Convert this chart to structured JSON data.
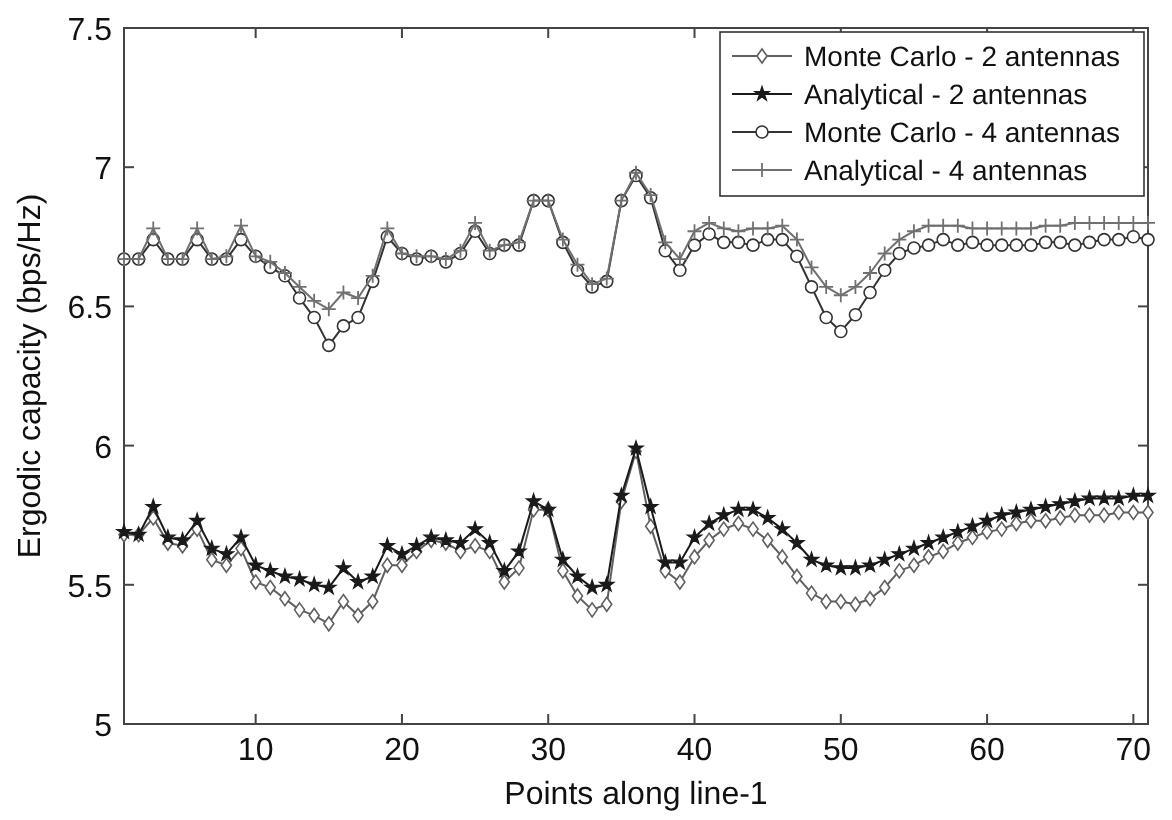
{
  "chart_data": {
    "type": "line",
    "xlabel": "Points along line-1",
    "ylabel": "Ergodic capacity (bps/Hz)",
    "x": [
      1,
      2,
      3,
      4,
      5,
      6,
      7,
      8,
      9,
      10,
      11,
      12,
      13,
      14,
      15,
      16,
      17,
      18,
      19,
      20,
      21,
      22,
      23,
      24,
      25,
      26,
      27,
      28,
      29,
      30,
      31,
      32,
      33,
      34,
      35,
      36,
      37,
      38,
      39,
      40,
      41,
      42,
      43,
      44,
      45,
      46,
      47,
      48,
      49,
      50,
      51,
      52,
      53,
      54,
      55,
      56,
      57,
      58,
      59,
      60,
      61,
      62,
      63,
      64,
      65,
      66,
      67,
      68,
      69,
      70,
      71
    ],
    "xlim": [
      1,
      71
    ],
    "xticks": [
      10,
      20,
      30,
      40,
      50,
      60,
      70
    ],
    "ylim": [
      5,
      7.5
    ],
    "yticks": [
      5,
      5.5,
      6,
      6.5,
      7,
      7.5
    ],
    "grid": false,
    "legend": "top right",
    "line_style": "solid",
    "series": [
      {
        "name": "Monte Carlo - 2 antennas",
        "color": "#606060",
        "marker": "diamond",
        "values": [
          5.68,
          5.68,
          5.74,
          5.65,
          5.64,
          5.7,
          5.59,
          5.57,
          5.63,
          5.51,
          5.49,
          5.45,
          5.41,
          5.39,
          5.36,
          5.44,
          5.39,
          5.44,
          5.57,
          5.57,
          5.62,
          5.66,
          5.65,
          5.62,
          5.64,
          5.62,
          5.51,
          5.56,
          5.77,
          5.77,
          5.55,
          5.46,
          5.41,
          5.43,
          5.8,
          5.98,
          5.71,
          5.55,
          5.51,
          5.6,
          5.66,
          5.7,
          5.72,
          5.7,
          5.66,
          5.6,
          5.53,
          5.47,
          5.44,
          5.44,
          5.43,
          5.45,
          5.49,
          5.55,
          5.57,
          5.6,
          5.62,
          5.65,
          5.67,
          5.69,
          5.7,
          5.72,
          5.73,
          5.73,
          5.74,
          5.75,
          5.75,
          5.75,
          5.76,
          5.76,
          5.76
        ]
      },
      {
        "name": "Analytical - 2 antennas",
        "color": "#1a1a1a",
        "marker": "star",
        "values": [
          5.69,
          5.68,
          5.78,
          5.67,
          5.66,
          5.73,
          5.63,
          5.61,
          5.67,
          5.57,
          5.55,
          5.53,
          5.52,
          5.5,
          5.49,
          5.56,
          5.51,
          5.53,
          5.64,
          5.61,
          5.64,
          5.67,
          5.66,
          5.65,
          5.7,
          5.65,
          5.55,
          5.62,
          5.8,
          5.77,
          5.59,
          5.53,
          5.49,
          5.5,
          5.82,
          5.99,
          5.78,
          5.58,
          5.58,
          5.67,
          5.72,
          5.75,
          5.77,
          5.77,
          5.74,
          5.7,
          5.65,
          5.59,
          5.57,
          5.56,
          5.56,
          5.57,
          5.59,
          5.61,
          5.63,
          5.65,
          5.67,
          5.69,
          5.71,
          5.73,
          5.75,
          5.76,
          5.77,
          5.78,
          5.79,
          5.8,
          5.81,
          5.81,
          5.81,
          5.82,
          5.82
        ]
      },
      {
        "name": "Monte Carlo - 4 antennas",
        "color": "#333333",
        "marker": "circle",
        "values": [
          6.67,
          6.67,
          6.74,
          6.67,
          6.67,
          6.74,
          6.67,
          6.67,
          6.74,
          6.68,
          6.64,
          6.61,
          6.53,
          6.46,
          6.36,
          6.43,
          6.46,
          6.59,
          6.75,
          6.69,
          6.67,
          6.68,
          6.66,
          6.69,
          6.77,
          6.69,
          6.72,
          6.72,
          6.88,
          6.88,
          6.73,
          6.63,
          6.57,
          6.59,
          6.88,
          6.97,
          6.89,
          6.7,
          6.63,
          6.72,
          6.76,
          6.73,
          6.73,
          6.72,
          6.74,
          6.74,
          6.68,
          6.57,
          6.46,
          6.41,
          6.47,
          6.55,
          6.63,
          6.69,
          6.71,
          6.72,
          6.74,
          6.72,
          6.73,
          6.72,
          6.72,
          6.72,
          6.72,
          6.73,
          6.73,
          6.72,
          6.73,
          6.74,
          6.74,
          6.75,
          6.74
        ]
      },
      {
        "name": "Analytical - 4 antennas",
        "color": "#707070",
        "marker": "cross",
        "values": [
          6.67,
          6.67,
          6.78,
          6.67,
          6.67,
          6.78,
          6.67,
          6.68,
          6.79,
          6.68,
          6.66,
          6.62,
          6.57,
          6.52,
          6.49,
          6.55,
          6.53,
          6.61,
          6.78,
          6.69,
          6.68,
          6.68,
          6.67,
          6.7,
          6.8,
          6.7,
          6.72,
          6.73,
          6.88,
          6.88,
          6.74,
          6.65,
          6.58,
          6.6,
          6.88,
          6.98,
          6.9,
          6.73,
          6.67,
          6.77,
          6.8,
          6.78,
          6.77,
          6.78,
          6.78,
          6.79,
          6.74,
          6.64,
          6.57,
          6.54,
          6.57,
          6.62,
          6.69,
          6.74,
          6.77,
          6.79,
          6.79,
          6.79,
          6.78,
          6.78,
          6.78,
          6.78,
          6.78,
          6.79,
          6.79,
          6.8,
          6.8,
          6.8,
          6.8,
          6.8,
          6.8
        ]
      }
    ]
  }
}
